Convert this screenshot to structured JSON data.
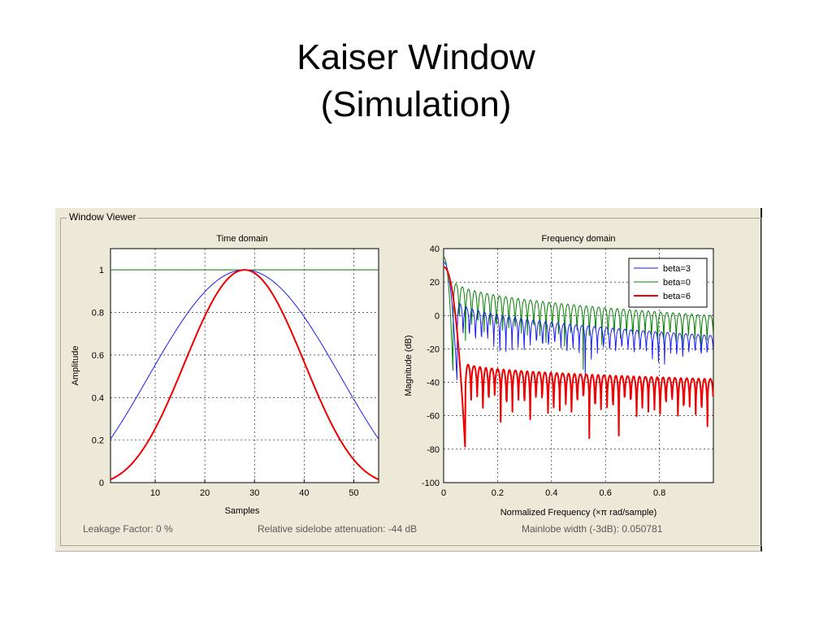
{
  "slide": {
    "title_line1": "Kaiser Window",
    "title_line2": "(Simulation)"
  },
  "window": {
    "group_label": "Window Viewer"
  },
  "status": {
    "leakage": "Leakage Factor: 0 %",
    "sidelobe": "Relative sidelobe attenuation: -44 dB",
    "mainlobe": "Mainlobe width (-3dB): 0.050781"
  },
  "colors": {
    "beta3": "#1a1aff",
    "beta0": "#008000",
    "beta6": "#ee0000",
    "panel": "#ece9d8"
  },
  "chart_data": [
    {
      "type": "line",
      "title": "Time domain",
      "xlabel": "Samples",
      "ylabel": "Amplitude",
      "xlim": [
        1,
        55
      ],
      "ylim": [
        0,
        1.1
      ],
      "xticks": [
        10,
        20,
        30,
        40,
        50
      ],
      "yticks": [
        0,
        0.2,
        0.4,
        0.6,
        0.8,
        1
      ],
      "grid": true,
      "series": [
        {
          "color": "#008000",
          "x": [
            1,
            55
          ],
          "y": [
            1,
            1
          ]
        },
        {
          "color": "#1a1aff",
          "x": [
            1,
            10,
            20,
            28,
            40,
            50,
            55
          ],
          "y": [
            0.2,
            0.54,
            0.89,
            1.0,
            0.78,
            0.43,
            0.2
          ]
        },
        {
          "color": "#ee0000",
          "x": [
            1,
            5,
            10,
            15,
            20,
            25,
            28,
            31,
            35,
            40,
            45,
            50,
            55
          ],
          "y": [
            0.01,
            0.06,
            0.2,
            0.45,
            0.73,
            0.94,
            1.0,
            0.97,
            0.84,
            0.57,
            0.29,
            0.08,
            0.0
          ]
        }
      ]
    },
    {
      "type": "line",
      "title": "Frequency domain",
      "xlabel": "Normalized Frequency  (×π rad/sample)",
      "ylabel": "Magnitude (dB)",
      "xlim": [
        0,
        1
      ],
      "ylim": [
        -100,
        40
      ],
      "xticks": [
        0,
        0.2,
        0.4,
        0.6,
        0.8
      ],
      "yticks": [
        -100,
        -80,
        -60,
        -40,
        -20,
        0,
        20,
        40
      ],
      "grid": true,
      "legend_position": "top-right",
      "series": [
        {
          "name": "beta=3",
          "color": "#1a1aff",
          "mainlobe_peak": 32,
          "mainlobe_width": 0.05,
          "sidelobe_start": 10,
          "sidelobe_end": -12,
          "null_depth": -40,
          "lobes": 42
        },
        {
          "name": "beta=0",
          "color": "#008000",
          "mainlobe_peak": 35,
          "mainlobe_width": 0.035,
          "sidelobe_start": 22,
          "sidelobe_end": 0,
          "null_depth": -35,
          "lobes": 42
        },
        {
          "name": "beta=6",
          "color": "#ee0000",
          "mainlobe_peak": 29,
          "mainlobe_width": 0.08,
          "sidelobe_start": -28,
          "sidelobe_end": -38,
          "null_depth": -80,
          "lobes": 42
        }
      ]
    }
  ]
}
